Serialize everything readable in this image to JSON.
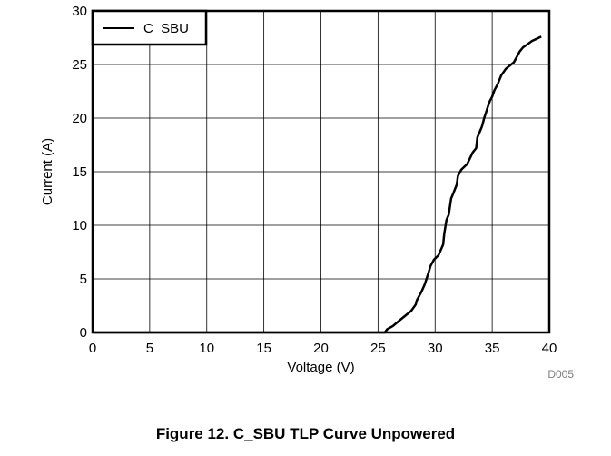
{
  "chart_data": {
    "type": "line",
    "xlabel": "Voltage (V)",
    "ylabel": "Current (A)",
    "xlim": [
      0,
      40
    ],
    "ylim": [
      0,
      30
    ],
    "xticks": [
      "0",
      "5",
      "10",
      "15",
      "20",
      "25",
      "30",
      "35",
      "40"
    ],
    "yticks": [
      "0",
      "5",
      "10",
      "15",
      "20",
      "25",
      "30"
    ],
    "grid": true,
    "legend_position": "top-left",
    "series": [
      {
        "name": "C_SBU",
        "color": "#000000",
        "x": [
          0,
          25.6,
          25.8,
          26.3,
          27.2,
          27.9,
          28.3,
          28.4,
          28.8,
          29.1,
          29.4,
          29.6,
          29.9,
          30.3,
          30.7,
          30.8,
          31.0,
          31.2,
          31.4,
          31.6,
          31.9,
          32.0,
          32.3,
          32.6,
          32.8,
          33.3,
          33.6,
          33.7,
          34.1,
          34.3,
          34.6,
          34.8,
          35.0,
          35.2,
          35.5,
          35.6,
          35.8,
          36.2,
          36.9,
          37.2,
          37.4,
          37.7,
          38.1,
          38.5,
          38.9,
          39.1,
          39.3
        ],
        "y": [
          0,
          0,
          0.3,
          0.6,
          1.4,
          2.0,
          2.6,
          3.0,
          3.8,
          4.5,
          5.5,
          6.2,
          6.8,
          7.2,
          8.2,
          9.2,
          10.5,
          11.0,
          12.5,
          13.0,
          13.8,
          14.6,
          15.2,
          15.5,
          15.7,
          16.8,
          17.2,
          18.2,
          19.2,
          20.0,
          21.0,
          21.6,
          22.0,
          22.6,
          23.2,
          23.5,
          24.0,
          24.6,
          25.2,
          25.8,
          26.2,
          26.6,
          26.9,
          27.2,
          27.4,
          27.5,
          27.6
        ]
      }
    ]
  },
  "figure_id": "D005",
  "caption": "Figure 12. C_SBU TLP Curve Unpowered"
}
